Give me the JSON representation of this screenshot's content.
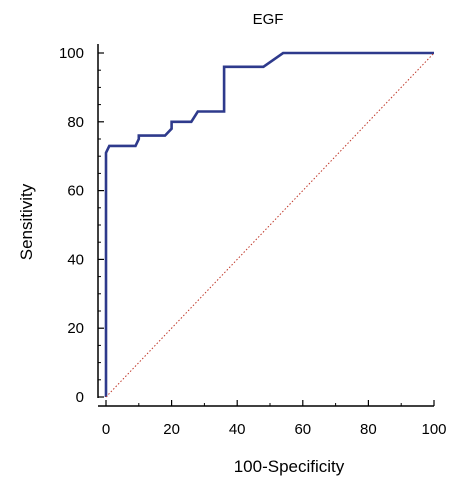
{
  "chart_data": {
    "type": "line",
    "title": "EGF",
    "xlabel": "100-Specificity",
    "ylabel": "Sensitivity",
    "xlim": [
      0,
      100
    ],
    "ylim": [
      0,
      100
    ],
    "xticks": [
      0,
      20,
      40,
      60,
      80,
      100
    ],
    "yticks": [
      0,
      20,
      40,
      60,
      80,
      100
    ],
    "grid": false,
    "series": [
      {
        "kind": "roc-curve",
        "color": "#2e3a8c",
        "x": [
          0,
          0,
          0,
          1,
          1,
          1,
          9,
          10,
          10,
          18,
          20,
          20,
          26,
          28,
          28,
          36,
          36,
          48,
          54,
          100
        ],
        "y": [
          0,
          69,
          71,
          73,
          73,
          73,
          73,
          75,
          76,
          76,
          78,
          80,
          80,
          83,
          83,
          83,
          96,
          96,
          100,
          100
        ]
      },
      {
        "kind": "reference-diagonal",
        "color": "#c0392b",
        "x": [
          0,
          100
        ],
        "y": [
          0,
          100
        ]
      }
    ]
  }
}
